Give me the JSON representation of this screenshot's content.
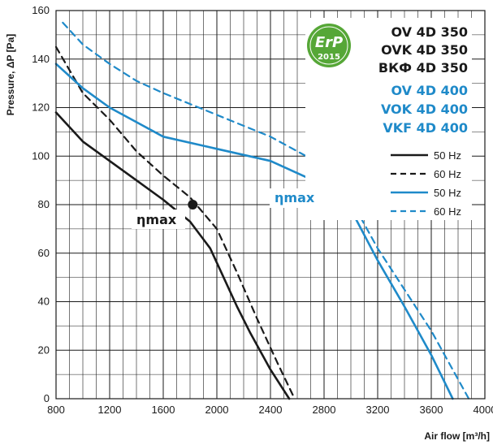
{
  "colors": {
    "black": "#1a1a1a",
    "blue": "#1f8ac9",
    "badge_green": "#56a737"
  },
  "badge": {
    "text": "ErP",
    "year": "2015",
    "icon": "erp-2015-badge"
  },
  "models_black": [
    "OV 4D 350",
    "OVK 4D 350",
    "ВКФ 4D 350"
  ],
  "models_blue": [
    "OV 4D 400",
    "VOK 4D 400",
    "VKF 4D 400"
  ],
  "legend": [
    "50 Hz",
    "60 Hz",
    "50 Hz",
    "60 Hz"
  ],
  "annotations": {
    "eta_black": "ηmax",
    "eta_blue": "ηmax"
  },
  "chart_data": {
    "type": "line",
    "xlabel": "Air flow [m³/h]",
    "ylabel": "Pressure, ΔP [Pa]",
    "xlim": [
      800,
      4000
    ],
    "ylim": [
      0,
      160
    ],
    "x_ticks": [
      800,
      1200,
      1600,
      2000,
      2400,
      2800,
      3200,
      3600,
      4000
    ],
    "y_ticks": [
      0,
      20,
      40,
      60,
      80,
      100,
      120,
      140,
      160
    ],
    "grid": true,
    "legend_position": "top-right",
    "series": [
      {
        "name": "50 Hz",
        "color": "#1a1a1a",
        "dash": false,
        "x": [
          800,
          1000,
          1200,
          1400,
          1600,
          1800,
          1950,
          2050,
          2150,
          2250,
          2400,
          2540
        ],
        "y": [
          118,
          106,
          98,
          90,
          82,
          73,
          62,
          50,
          38,
          27,
          12,
          0
        ]
      },
      {
        "name": "60 Hz",
        "color": "#1a1a1a",
        "dash": true,
        "x": [
          800,
          1000,
          1200,
          1400,
          1600,
          1800,
          2000,
          2150,
          2300,
          2450,
          2580
        ],
        "y": [
          145,
          126,
          115,
          102,
          92,
          83,
          70,
          52,
          33,
          15,
          0
        ]
      },
      {
        "name": "50 Hz",
        "color": "#1f8ac9",
        "dash": false,
        "x": [
          800,
          1000,
          1200,
          1400,
          1600,
          2000,
          2400,
          2800,
          3000,
          3200,
          3400,
          3600,
          3760
        ],
        "y": [
          138,
          128,
          120,
          114,
          108,
          103,
          98,
          88,
          78,
          57,
          38,
          18,
          0
        ]
      },
      {
        "name": "60 Hz",
        "color": "#1f8ac9",
        "dash": true,
        "x": [
          850,
          1000,
          1200,
          1400,
          1600,
          2000,
          2400,
          2800,
          3000,
          3200,
          3400,
          3600,
          3880
        ],
        "y": [
          155,
          146,
          138,
          131,
          126,
          117,
          108,
          96,
          82,
          62,
          45,
          28,
          0
        ]
      }
    ],
    "markers": [
      {
        "x": 1820,
        "y": 80,
        "label": "ηmax"
      }
    ]
  }
}
